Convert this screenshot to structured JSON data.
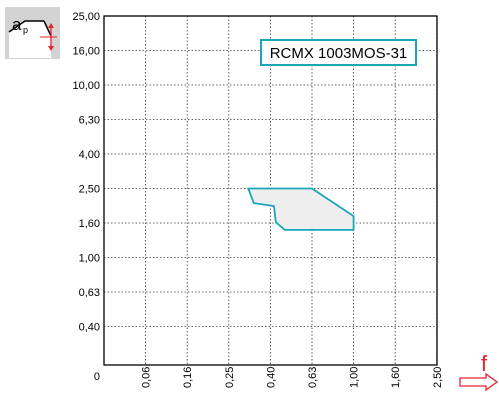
{
  "icon_label": "a",
  "icon_label_sub": "p",
  "feed_symbol": "f",
  "chart_data": {
    "type": "area",
    "title": "RCMX 1003MOS-31",
    "xlabel": "f",
    "ylabel": "ap",
    "x_ticks": [
      "0",
      "0,06",
      "0,16",
      "0,25",
      "0,40",
      "0,63",
      "1,00",
      "1,60",
      "2,50"
    ],
    "y_ticks": [
      "0,40",
      "0,63",
      "1,00",
      "1,60",
      "2,50",
      "4,00",
      "6,30",
      "10,00",
      "16,00",
      "25,00"
    ],
    "y_origin_label": "0",
    "grid": true,
    "series": [
      {
        "x": [
          0.32,
          0.63,
          1.0,
          1.0,
          0.48,
          0.43,
          0.42,
          0.34,
          0.32
        ],
        "y": [
          2.5,
          2.5,
          1.78,
          1.48,
          1.48,
          1.62,
          2.04,
          2.12,
          2.5
        ]
      }
    ],
    "colors": {
      "region_fill": "#eeeeee",
      "region_stroke": "#1aa6b7",
      "frame": "#000000",
      "grid": "#333333",
      "arrow": "#e8202a"
    }
  }
}
